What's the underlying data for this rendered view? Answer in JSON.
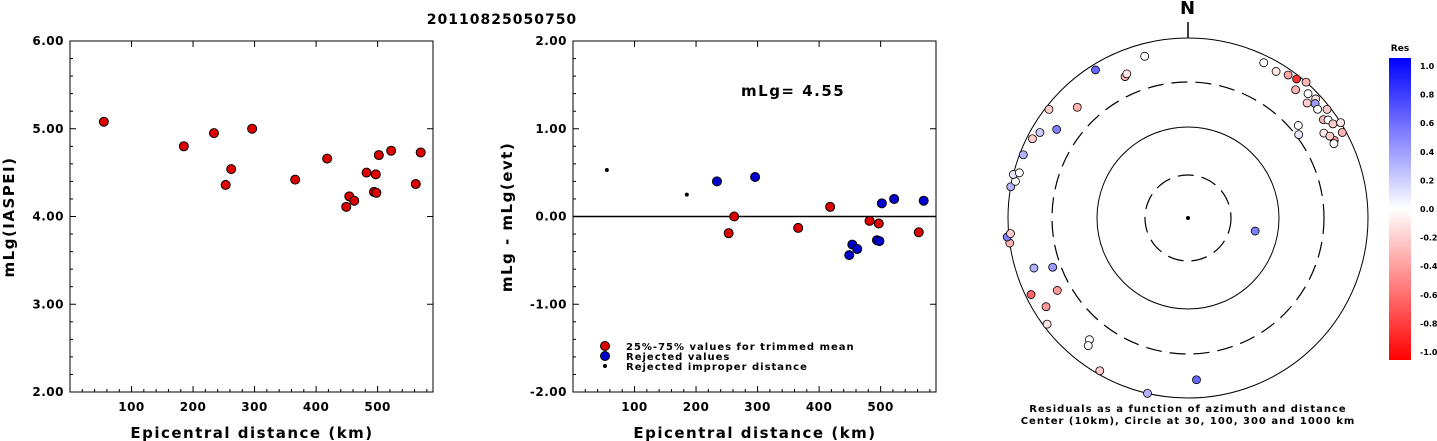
{
  "title": "20110825050750",
  "chart_data": [
    {
      "type": "scatter",
      "xlabel": "Epicentral distance (km)",
      "ylabel": "mLg(IASPEI)",
      "xlim": [
        0,
        590
      ],
      "ylim": [
        2.0,
        6.0
      ],
      "xticks": [
        "100",
        "200",
        "300",
        "400",
        "500"
      ],
      "yticks": [
        "2.00",
        "3.00",
        "4.00",
        "5.00",
        "6.00"
      ],
      "points": [
        {
          "x": 55,
          "y": 5.08
        },
        {
          "x": 185,
          "y": 4.8
        },
        {
          "x": 234,
          "y": 4.95
        },
        {
          "x": 253,
          "y": 4.36
        },
        {
          "x": 262,
          "y": 4.54
        },
        {
          "x": 296,
          "y": 5.0
        },
        {
          "x": 366,
          "y": 4.42
        },
        {
          "x": 418,
          "y": 4.66
        },
        {
          "x": 449,
          "y": 4.11
        },
        {
          "x": 454,
          "y": 4.23
        },
        {
          "x": 462,
          "y": 4.18
        },
        {
          "x": 482,
          "y": 4.5
        },
        {
          "x": 494,
          "y": 4.28
        },
        {
          "x": 497,
          "y": 4.48
        },
        {
          "x": 498,
          "y": 4.27
        },
        {
          "x": 502,
          "y": 4.7
        },
        {
          "x": 522,
          "y": 4.75
        },
        {
          "x": 562,
          "y": 4.37
        },
        {
          "x": 570,
          "y": 4.73
        }
      ]
    },
    {
      "type": "scatter",
      "xlabel": "Epicentral distance (km)",
      "ylabel": "mLg - mLg(evt)",
      "xlim": [
        0,
        590
      ],
      "ylim": [
        -2.0,
        2.0
      ],
      "xticks": [
        "100",
        "200",
        "300",
        "400",
        "500"
      ],
      "yticks": [
        "-2.00",
        "-1.00",
        "0.00",
        "1.00",
        "2.00"
      ],
      "annotation": "mLg= 4.55",
      "reference_line": 0,
      "legend": [
        {
          "label": "25%-75% values for trimmed mean",
          "color": "#dd0000"
        },
        {
          "label": "Rejected values",
          "color": "#0000cc"
        },
        {
          "label": "Rejected improper distance",
          "color": "#000000"
        }
      ],
      "series": [
        {
          "group": "trimmed",
          "points": [
            {
              "x": 253,
              "y": -0.19
            },
            {
              "x": 262,
              "y": 0.0
            },
            {
              "x": 366,
              "y": -0.13
            },
            {
              "x": 418,
              "y": 0.11
            },
            {
              "x": 482,
              "y": -0.05
            },
            {
              "x": 497,
              "y": -0.08
            },
            {
              "x": 562,
              "y": -0.18
            }
          ]
        },
        {
          "group": "rejected",
          "points": [
            {
              "x": 234,
              "y": 0.4
            },
            {
              "x": 296,
              "y": 0.45
            },
            {
              "x": 449,
              "y": -0.44
            },
            {
              "x": 454,
              "y": -0.32
            },
            {
              "x": 462,
              "y": -0.37
            },
            {
              "x": 494,
              "y": -0.27
            },
            {
              "x": 498,
              "y": -0.28
            },
            {
              "x": 502,
              "y": 0.15
            },
            {
              "x": 522,
              "y": 0.2
            },
            {
              "x": 570,
              "y": 0.18
            }
          ]
        },
        {
          "group": "improper",
          "points": [
            {
              "x": 55,
              "y": 0.53
            },
            {
              "x": 185,
              "y": 0.25
            }
          ]
        }
      ]
    },
    {
      "type": "scatter",
      "subtype": "polar",
      "north_label": "N",
      "caption_line1": "Residuals as a function of azimuth and distance",
      "caption_line2": "Center (10km), Circle at 30, 100, 300 and 1000 km",
      "colorbar_title": "Res",
      "colorbar_ticks": [
        "1.0",
        "0.8",
        "0.6",
        "0.4",
        "0.2",
        "0.0",
        "-0.2",
        "-0.4",
        "-0.6",
        "-0.8",
        "-1.0"
      ],
      "points": [
        {
          "az": 26,
          "r": 0.96,
          "res": 0.0
        },
        {
          "az": 31,
          "r": 0.95,
          "res": -0.1
        },
        {
          "az": 35,
          "r": 0.97,
          "res": -0.35
        },
        {
          "az": 38,
          "r": 0.98,
          "res": -0.8
        },
        {
          "az": 41,
          "r": 1.0,
          "res": -0.3
        },
        {
          "az": 40,
          "r": 0.93,
          "res": -0.3
        },
        {
          "az": 44,
          "r": 0.96,
          "res": 0.0
        },
        {
          "az": 47,
          "r": 0.97,
          "res": -0.1
        },
        {
          "az": 48,
          "r": 0.95,
          "res": 0.4
        },
        {
          "az": 46,
          "r": 0.92,
          "res": -0.2
        },
        {
          "az": 50,
          "r": 0.94,
          "res": 0.0
        },
        {
          "az": 52,
          "r": 0.98,
          "res": -0.2
        },
        {
          "az": 54,
          "r": 0.93,
          "res": -0.3
        },
        {
          "az": 55,
          "r": 0.95,
          "res": 0.0
        },
        {
          "az": 57,
          "r": 0.96,
          "res": -0.2
        },
        {
          "az": 58,
          "r": 1.0,
          "res": -0.1
        },
        {
          "az": 61,
          "r": 0.98,
          "res": -0.3
        },
        {
          "az": 50,
          "r": 0.8,
          "res": 0.0
        },
        {
          "az": 53,
          "r": 0.77,
          "res": 0.1
        },
        {
          "az": 58,
          "r": 0.89,
          "res": -0.1
        },
        {
          "az": 62,
          "r": 0.92,
          "res": -0.4
        },
        {
          "az": 60,
          "r": 0.91,
          "res": -0.2
        },
        {
          "az": 63,
          "r": 0.91,
          "res": 0.0
        },
        {
          "az": 101,
          "r": 0.38,
          "res": 0.5
        },
        {
          "az": 177,
          "r": 0.9,
          "res": 0.6
        },
        {
          "az": 193,
          "r": 1.0,
          "res": 0.3
        },
        {
          "az": 210,
          "r": 0.98,
          "res": -0.2
        },
        {
          "az": 219,
          "r": 0.87,
          "res": 0.0
        },
        {
          "az": 218,
          "r": 0.9,
          "res": 0.0
        },
        {
          "az": 233,
          "r": 0.98,
          "res": -0.1
        },
        {
          "az": 238,
          "r": 0.93,
          "res": -0.4
        },
        {
          "az": 241,
          "r": 0.83,
          "res": -0.4
        },
        {
          "az": 244,
          "r": 0.97,
          "res": -0.6
        },
        {
          "az": 250,
          "r": 0.8,
          "res": 0.4
        },
        {
          "az": 252,
          "r": 0.9,
          "res": 0.3
        },
        {
          "az": 262,
          "r": 1.0,
          "res": -0.3
        },
        {
          "az": 264,
          "r": 1.01,
          "res": 0.5
        },
        {
          "az": 265,
          "r": 0.99,
          "res": -0.2
        },
        {
          "az": 280,
          "r": 1.0,
          "res": 0.3
        },
        {
          "az": 282,
          "r": 0.98,
          "res": 0.0
        },
        {
          "az": 284,
          "r": 1.0,
          "res": 0.1
        },
        {
          "az": 285,
          "r": 0.97,
          "res": 0.0
        },
        {
          "az": 291,
          "r": 0.98,
          "res": 0.3
        },
        {
          "az": 297,
          "r": 0.97,
          "res": -0.2
        },
        {
          "az": 300,
          "r": 0.95,
          "res": 0.2
        },
        {
          "az": 304,
          "r": 0.88,
          "res": 0.5
        },
        {
          "az": 308,
          "r": 0.98,
          "res": -0.2
        },
        {
          "az": 315,
          "r": 0.87,
          "res": -0.3
        },
        {
          "az": 328,
          "r": 0.97,
          "res": 0.6
        },
        {
          "az": 336,
          "r": 0.86,
          "res": -0.3
        },
        {
          "az": 337,
          "r": 0.87,
          "res": -0.1
        },
        {
          "az": 345,
          "r": 0.93,
          "res": 0.0
        }
      ]
    }
  ]
}
